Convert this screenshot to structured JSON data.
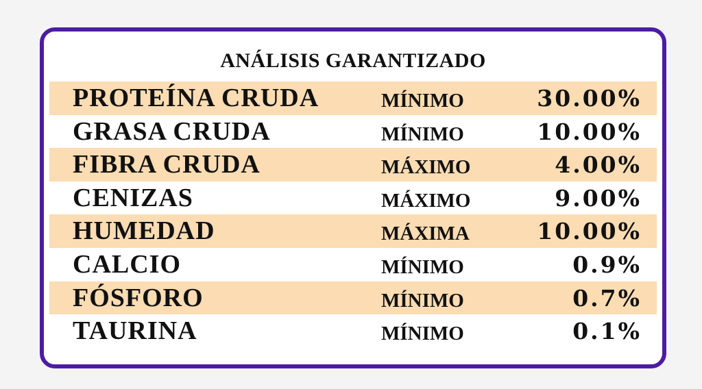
{
  "title": "ANÁLISIS GARANTIZADO",
  "colors": {
    "border": "#4d1ca3",
    "stripe": "#fbdcb3"
  },
  "rows": [
    {
      "name": "PROTEÍNA CRUDA",
      "limit": "MÍNIMO",
      "value": "30.00%"
    },
    {
      "name": "GRASA CRUDA",
      "limit": "MÍNIMO",
      "value": "10.00%"
    },
    {
      "name": "FIBRA CRUDA",
      "limit": "MÁXIMO",
      "value": "4.00%"
    },
    {
      "name": "CENIZAS",
      "limit": "MÁXIMO",
      "value": "9.00%"
    },
    {
      "name": "HUMEDAD",
      "limit": "MÁXIMA",
      "value": "10.00%"
    },
    {
      "name": "CALCIO",
      "limit": "MÍNIMO",
      "value": "0.9%"
    },
    {
      "name": "FÓSFORO",
      "limit": "MÍNIMO",
      "value": "0.7%"
    },
    {
      "name": "TAURINA",
      "limit": "MÍNIMO",
      "value": "0.1%"
    }
  ]
}
